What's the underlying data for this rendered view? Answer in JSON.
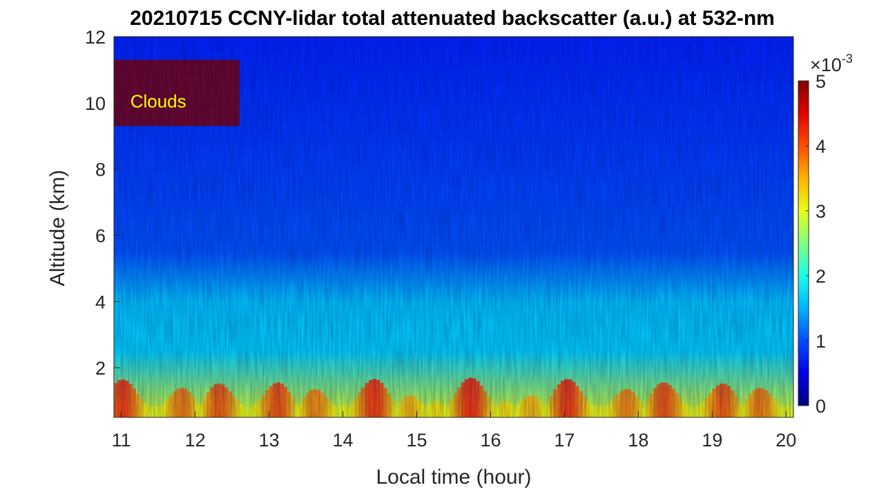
{
  "chart_data": {
    "type": "heatmap",
    "title": "20210715 CCNY-lidar total attenuated backscatter (a.u.) at 532-nm",
    "xlabel": "Local time (hour)",
    "ylabel": "Altitude (km)",
    "xlim": [
      10.9,
      20.1
    ],
    "ylim": [
      0.5,
      12
    ],
    "xticks": [
      11,
      12,
      13,
      14,
      15,
      16,
      17,
      18,
      19,
      20
    ],
    "yticks": [
      2,
      4,
      6,
      8,
      10,
      12
    ],
    "colorbar": {
      "range": [
        0,
        5
      ],
      "ticks": [
        0,
        1,
        2,
        3,
        4,
        5
      ],
      "exponent_label": "×10",
      "exponent_power": "-3",
      "colormap": "jet"
    },
    "annotations": [
      {
        "text": "Clouds",
        "x": 11.5,
        "y": 10.0,
        "color": "#ffff00"
      }
    ],
    "features": {
      "cloud_layer": {
        "time": [
          10.9,
          12.6
        ],
        "altitude": [
          9.3,
          11.3
        ],
        "value": 5.0
      },
      "boundary_layer": {
        "time": [
          10.9,
          20.1
        ],
        "altitude": [
          0.5,
          2.5
        ],
        "value": 3.0
      },
      "aerosol_layer": {
        "time": [
          10.9,
          20.1
        ],
        "altitude": [
          2.5,
          5.5
        ],
        "value": 1.6
      },
      "free_troposphere": {
        "time": [
          10.9,
          20.1
        ],
        "altitude": [
          5.5,
          12
        ],
        "value": 0.8
      }
    }
  }
}
